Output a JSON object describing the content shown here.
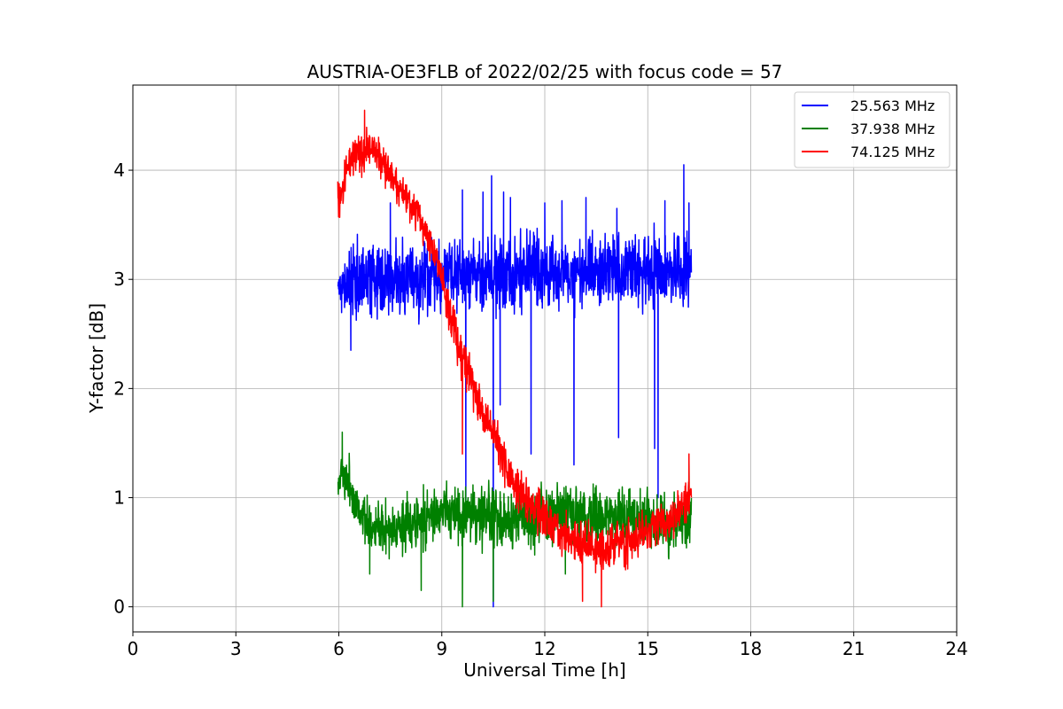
{
  "chart_data": {
    "type": "line",
    "title": "AUSTRIA-OE3FLB of 2022/02/25 with focus code = 57",
    "xlabel": "Universal Time [h]",
    "ylabel": "Y-factor [dB]",
    "xlim": [
      0,
      24
    ],
    "ylim": [
      -0.23,
      4.78
    ],
    "xticks": [
      0,
      3,
      6,
      9,
      12,
      15,
      18,
      21,
      24
    ],
    "yticks": [
      0,
      1,
      2,
      3,
      4
    ],
    "grid": true,
    "legend_position": "top-right",
    "series": [
      {
        "name": "25.563 MHz",
        "color": "#0000ff",
        "x_range": [
          5.97,
          16.27
        ],
        "band": [
          [
            6.0,
            2.65,
            3.2
          ],
          [
            6.5,
            2.55,
            3.45
          ],
          [
            7.0,
            2.6,
            3.4
          ],
          [
            8.0,
            2.6,
            3.45
          ],
          [
            9.0,
            2.6,
            3.45
          ],
          [
            10.0,
            2.6,
            3.45
          ],
          [
            11.0,
            2.6,
            3.5
          ],
          [
            12.0,
            2.65,
            3.5
          ],
          [
            13.0,
            2.65,
            3.5
          ],
          [
            14.0,
            2.65,
            3.5
          ],
          [
            15.0,
            2.65,
            3.5
          ],
          [
            16.27,
            2.7,
            3.5
          ]
        ],
        "spikes": [
          [
            6.35,
            2.35
          ],
          [
            7.5,
            3.7
          ],
          [
            9.6,
            3.82
          ],
          [
            9.7,
            0.95
          ],
          [
            10.2,
            3.8
          ],
          [
            10.45,
            3.95
          ],
          [
            10.5,
            0.0
          ],
          [
            10.7,
            1.85
          ],
          [
            10.8,
            3.8
          ],
          [
            11.0,
            3.75
          ],
          [
            11.6,
            1.4
          ],
          [
            12.0,
            3.7
          ],
          [
            12.5,
            3.72
          ],
          [
            12.85,
            1.3
          ],
          [
            13.2,
            3.75
          ],
          [
            14.1,
            3.65
          ],
          [
            14.15,
            1.55
          ],
          [
            15.2,
            1.45
          ],
          [
            15.3,
            1.0
          ],
          [
            15.5,
            3.72
          ],
          [
            16.05,
            4.05
          ],
          [
            16.2,
            3.7
          ]
        ]
      },
      {
        "name": "37.938 MHz",
        "color": "#008000",
        "x_range": [
          5.97,
          16.27
        ],
        "band": [
          [
            6.0,
            0.9,
            1.45
          ],
          [
            6.2,
            0.85,
            1.5
          ],
          [
            6.5,
            0.65,
            1.2
          ],
          [
            7.0,
            0.45,
            1.05
          ],
          [
            7.5,
            0.4,
            1.05
          ],
          [
            8.0,
            0.45,
            1.1
          ],
          [
            9.0,
            0.5,
            1.15
          ],
          [
            10.0,
            0.5,
            1.2
          ],
          [
            11.0,
            0.45,
            1.15
          ],
          [
            12.0,
            0.45,
            1.2
          ],
          [
            13.0,
            0.45,
            1.2
          ],
          [
            14.0,
            0.45,
            1.2
          ],
          [
            15.0,
            0.4,
            1.15
          ],
          [
            16.27,
            0.5,
            1.1
          ]
        ],
        "spikes": [
          [
            6.1,
            1.6
          ],
          [
            6.9,
            0.3
          ],
          [
            8.4,
            0.15
          ],
          [
            9.6,
            0.0
          ],
          [
            10.5,
            0.05
          ],
          [
            12.6,
            0.3
          ],
          [
            16.2,
            1.35
          ]
        ]
      },
      {
        "name": "74.125 MHz",
        "color": "#ff0000",
        "x_range": [
          5.97,
          16.27
        ],
        "band": [
          [
            6.0,
            3.45,
            3.95
          ],
          [
            6.3,
            3.85,
            4.3
          ],
          [
            6.7,
            3.95,
            4.45
          ],
          [
            7.0,
            4.0,
            4.4
          ],
          [
            7.3,
            3.85,
            4.25
          ],
          [
            7.7,
            3.65,
            4.1
          ],
          [
            8.0,
            3.5,
            3.95
          ],
          [
            8.3,
            3.35,
            3.8
          ],
          [
            8.6,
            3.15,
            3.6
          ],
          [
            8.9,
            2.95,
            3.35
          ],
          [
            9.2,
            2.5,
            3.05
          ],
          [
            9.5,
            2.1,
            2.65
          ],
          [
            9.8,
            1.85,
            2.35
          ],
          [
            10.1,
            1.6,
            2.1
          ],
          [
            10.4,
            1.45,
            1.9
          ],
          [
            10.7,
            1.2,
            1.7
          ],
          [
            11.0,
            0.95,
            1.45
          ],
          [
            11.5,
            0.7,
            1.2
          ],
          [
            12.0,
            0.5,
            1.05
          ],
          [
            12.5,
            0.4,
            0.95
          ],
          [
            13.0,
            0.3,
            0.85
          ],
          [
            13.5,
            0.25,
            0.8
          ],
          [
            14.0,
            0.3,
            0.8
          ],
          [
            14.5,
            0.35,
            0.85
          ],
          [
            15.0,
            0.45,
            0.95
          ],
          [
            15.5,
            0.55,
            1.0
          ],
          [
            16.0,
            0.6,
            1.15
          ],
          [
            16.27,
            0.7,
            1.3
          ]
        ],
        "spikes": [
          [
            6.75,
            4.55
          ],
          [
            9.6,
            1.4
          ],
          [
            10.95,
            1.35
          ],
          [
            13.1,
            0.05
          ],
          [
            13.65,
            0.0
          ],
          [
            16.2,
            1.4
          ]
        ]
      }
    ]
  }
}
